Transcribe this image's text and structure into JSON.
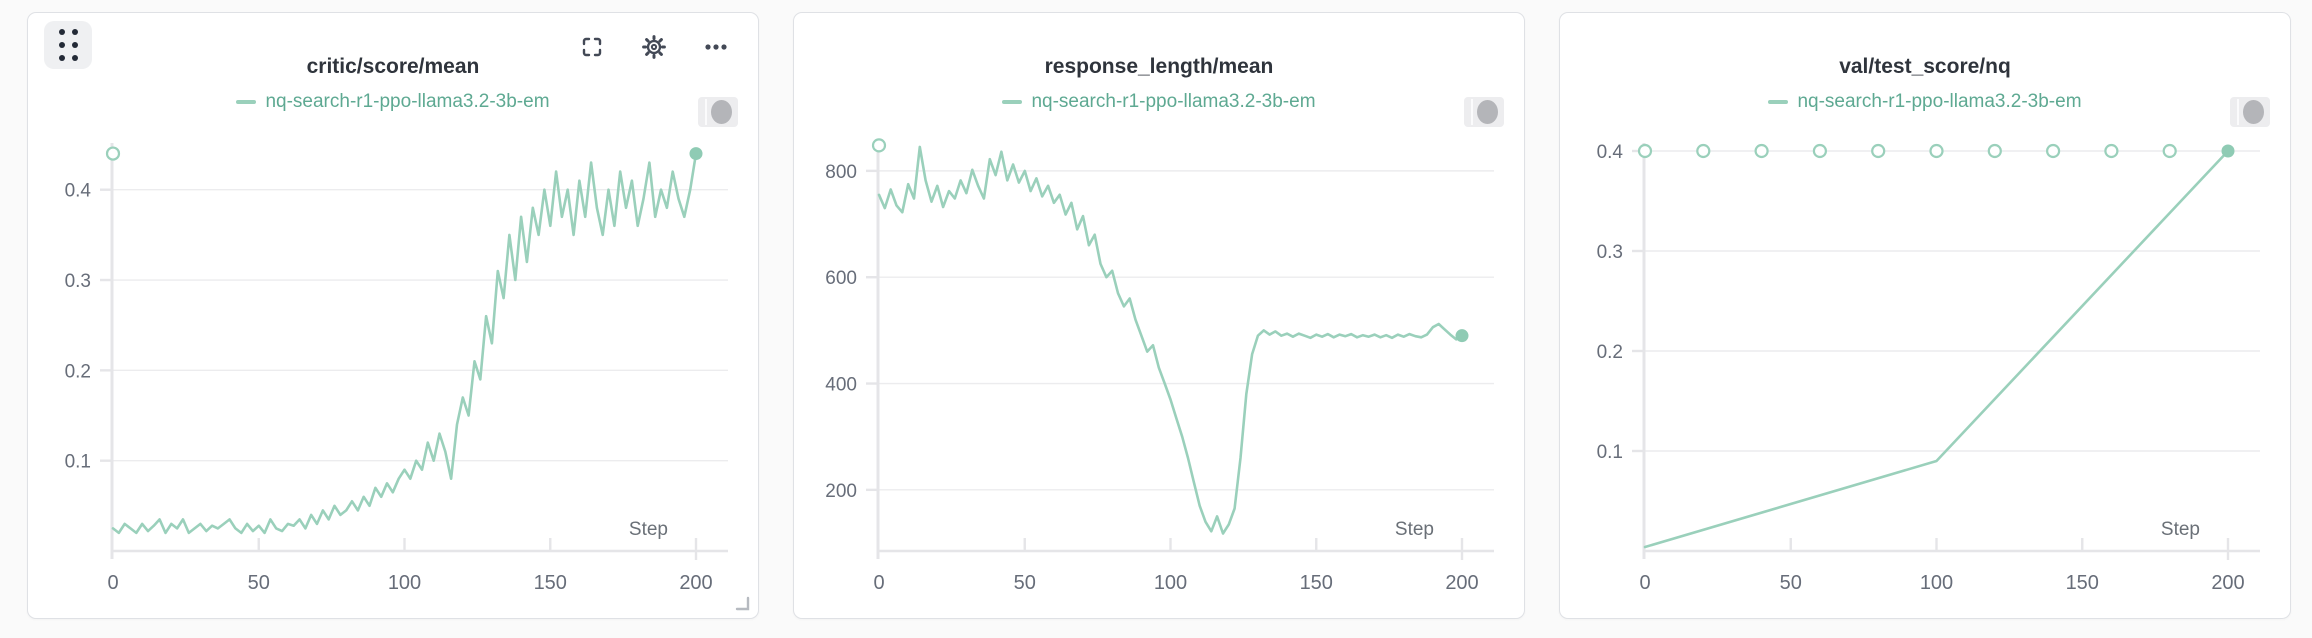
{
  "page": {
    "background": "#fafafa"
  },
  "run": {
    "name": "nq-search-r1-ppo-llama3.2-3b-em"
  },
  "colors": {
    "accent": "#9ad0bb",
    "legend_text": "#5ea992",
    "marker_fill": "#8fcbb4",
    "grid": "#ececee",
    "axis": "#e5e5e8",
    "tick_text": "#676d79",
    "title_text": "#2f343c",
    "step_text": "#6a7077"
  },
  "toolbar": {
    "icons": [
      "fullscreen",
      "settings",
      "more-options"
    ]
  },
  "chart_data": [
    {
      "type": "line",
      "title": "critic/score/mean",
      "legend": "nq-search-r1-ppo-llama3.2-3b-em",
      "xlabel": "Step",
      "xlim": [
        0,
        200
      ],
      "xticks": [
        0,
        50,
        100,
        150,
        200
      ],
      "ylim": [
        0,
        0.465
      ],
      "yticks": [
        0.1,
        0.2,
        0.3,
        0.4
      ],
      "ytick_labels": [
        "0.1",
        "0.2",
        "0.3",
        "0.4"
      ],
      "grid": true,
      "legend_position": "top-center",
      "points": [
        [
          0,
          0.025
        ],
        [
          2,
          0.02
        ],
        [
          4,
          0.03
        ],
        [
          6,
          0.025
        ],
        [
          8,
          0.02
        ],
        [
          10,
          0.03
        ],
        [
          12,
          0.022
        ],
        [
          14,
          0.028
        ],
        [
          16,
          0.035
        ],
        [
          18,
          0.02
        ],
        [
          20,
          0.03
        ],
        [
          22,
          0.025
        ],
        [
          24,
          0.035
        ],
        [
          26,
          0.02
        ],
        [
          28,
          0.025
        ],
        [
          30,
          0.03
        ],
        [
          32,
          0.022
        ],
        [
          34,
          0.028
        ],
        [
          36,
          0.025
        ],
        [
          38,
          0.03
        ],
        [
          40,
          0.035
        ],
        [
          42,
          0.025
        ],
        [
          44,
          0.02
        ],
        [
          46,
          0.03
        ],
        [
          48,
          0.022
        ],
        [
          50,
          0.028
        ],
        [
          52,
          0.02
        ],
        [
          54,
          0.035
        ],
        [
          56,
          0.025
        ],
        [
          58,
          0.022
        ],
        [
          60,
          0.03
        ],
        [
          62,
          0.028
        ],
        [
          64,
          0.035
        ],
        [
          66,
          0.025
        ],
        [
          68,
          0.04
        ],
        [
          70,
          0.03
        ],
        [
          72,
          0.045
        ],
        [
          74,
          0.035
        ],
        [
          76,
          0.05
        ],
        [
          78,
          0.04
        ],
        [
          80,
          0.045
        ],
        [
          82,
          0.055
        ],
        [
          84,
          0.045
        ],
        [
          86,
          0.06
        ],
        [
          88,
          0.05
        ],
        [
          90,
          0.07
        ],
        [
          92,
          0.06
        ],
        [
          94,
          0.075
        ],
        [
          96,
          0.065
        ],
        [
          98,
          0.08
        ],
        [
          100,
          0.09
        ],
        [
          102,
          0.08
        ],
        [
          104,
          0.1
        ],
        [
          106,
          0.09
        ],
        [
          108,
          0.12
        ],
        [
          110,
          0.1
        ],
        [
          112,
          0.13
        ],
        [
          114,
          0.11
        ],
        [
          116,
          0.08
        ],
        [
          118,
          0.14
        ],
        [
          120,
          0.17
        ],
        [
          122,
          0.15
        ],
        [
          124,
          0.21
        ],
        [
          126,
          0.19
        ],
        [
          128,
          0.26
        ],
        [
          130,
          0.23
        ],
        [
          132,
          0.31
        ],
        [
          134,
          0.28
        ],
        [
          136,
          0.35
        ],
        [
          138,
          0.3
        ],
        [
          140,
          0.37
        ],
        [
          142,
          0.32
        ],
        [
          144,
          0.38
        ],
        [
          146,
          0.35
        ],
        [
          148,
          0.4
        ],
        [
          150,
          0.36
        ],
        [
          152,
          0.42
        ],
        [
          154,
          0.37
        ],
        [
          156,
          0.4
        ],
        [
          158,
          0.35
        ],
        [
          160,
          0.41
        ],
        [
          162,
          0.37
        ],
        [
          164,
          0.43
        ],
        [
          166,
          0.38
        ],
        [
          168,
          0.35
        ],
        [
          170,
          0.4
        ],
        [
          172,
          0.36
        ],
        [
          174,
          0.42
        ],
        [
          176,
          0.38
        ],
        [
          178,
          0.41
        ],
        [
          180,
          0.36
        ],
        [
          182,
          0.39
        ],
        [
          184,
          0.43
        ],
        [
          186,
          0.37
        ],
        [
          188,
          0.4
        ],
        [
          190,
          0.38
        ],
        [
          192,
          0.42
        ],
        [
          194,
          0.39
        ],
        [
          196,
          0.37
        ],
        [
          198,
          0.4
        ],
        [
          200,
          0.44
        ]
      ],
      "hollow_markers": [
        [
          0,
          0.44
        ]
      ],
      "end_marker": [
        200,
        0.44
      ]
    },
    {
      "type": "line",
      "title": "response_length/mean",
      "legend": "nq-search-r1-ppo-llama3.2-3b-em",
      "xlabel": "Step",
      "xlim": [
        0,
        200
      ],
      "xticks": [
        0,
        50,
        100,
        150,
        200
      ],
      "ylim": [
        85,
        875
      ],
      "yticks": [
        200,
        400,
        600,
        800
      ],
      "ytick_labels": [
        "200",
        "400",
        "600",
        "800"
      ],
      "grid": true,
      "legend_position": "top-center",
      "points": [
        [
          0,
          755
        ],
        [
          2,
          730
        ],
        [
          4,
          765
        ],
        [
          6,
          735
        ],
        [
          8,
          722
        ],
        [
          10,
          775
        ],
        [
          12,
          748
        ],
        [
          14,
          845
        ],
        [
          16,
          782
        ],
        [
          18,
          742
        ],
        [
          20,
          772
        ],
        [
          22,
          732
        ],
        [
          24,
          762
        ],
        [
          26,
          748
        ],
        [
          28,
          782
        ],
        [
          30,
          758
        ],
        [
          32,
          802
        ],
        [
          34,
          772
        ],
        [
          36,
          748
        ],
        [
          38,
          822
        ],
        [
          40,
          792
        ],
        [
          42,
          836
        ],
        [
          44,
          782
        ],
        [
          46,
          812
        ],
        [
          48,
          778
        ],
        [
          50,
          800
        ],
        [
          52,
          762
        ],
        [
          54,
          786
        ],
        [
          56,
          752
        ],
        [
          58,
          772
        ],
        [
          60,
          740
        ],
        [
          62,
          755
        ],
        [
          64,
          718
        ],
        [
          66,
          740
        ],
        [
          68,
          690
        ],
        [
          70,
          715
        ],
        [
          72,
          660
        ],
        [
          74,
          680
        ],
        [
          76,
          625
        ],
        [
          78,
          600
        ],
        [
          80,
          612
        ],
        [
          82,
          570
        ],
        [
          84,
          545
        ],
        [
          86,
          560
        ],
        [
          88,
          520
        ],
        [
          90,
          490
        ],
        [
          92,
          460
        ],
        [
          94,
          472
        ],
        [
          96,
          430
        ],
        [
          98,
          400
        ],
        [
          100,
          370
        ],
        [
          102,
          335
        ],
        [
          104,
          300
        ],
        [
          106,
          260
        ],
        [
          108,
          215
        ],
        [
          110,
          170
        ],
        [
          112,
          140
        ],
        [
          114,
          122
        ],
        [
          116,
          150
        ],
        [
          118,
          118
        ],
        [
          120,
          135
        ],
        [
          122,
          165
        ],
        [
          124,
          260
        ],
        [
          126,
          380
        ],
        [
          128,
          455
        ],
        [
          130,
          490
        ],
        [
          132,
          500
        ],
        [
          134,
          492
        ],
        [
          136,
          498
        ],
        [
          138,
          490
        ],
        [
          140,
          494
        ],
        [
          142,
          488
        ],
        [
          144,
          494
        ],
        [
          146,
          490
        ],
        [
          148,
          486
        ],
        [
          150,
          492
        ],
        [
          152,
          488
        ],
        [
          154,
          493
        ],
        [
          156,
          487
        ],
        [
          158,
          492
        ],
        [
          160,
          489
        ],
        [
          162,
          493
        ],
        [
          164,
          487
        ],
        [
          166,
          491
        ],
        [
          168,
          488
        ],
        [
          170,
          492
        ],
        [
          172,
          487
        ],
        [
          174,
          491
        ],
        [
          176,
          486
        ],
        [
          178,
          492
        ],
        [
          180,
          488
        ],
        [
          182,
          493
        ],
        [
          184,
          489
        ],
        [
          186,
          487
        ],
        [
          188,
          492
        ],
        [
          190,
          506
        ],
        [
          192,
          512
        ],
        [
          194,
          502
        ],
        [
          196,
          492
        ],
        [
          198,
          483
        ],
        [
          200,
          490
        ]
      ],
      "hollow_markers": [
        [
          0,
          848
        ]
      ],
      "end_marker": [
        200,
        490
      ]
    },
    {
      "type": "line",
      "title": "val/test_score/nq",
      "legend": "nq-search-r1-ppo-llama3.2-3b-em",
      "xlabel": "Step",
      "xlim": [
        0,
        200
      ],
      "xticks": [
        0,
        50,
        100,
        150,
        200
      ],
      "ylim": [
        0,
        0.42
      ],
      "yticks": [
        0.1,
        0.2,
        0.3,
        0.4
      ],
      "ytick_labels": [
        "0.1",
        "0.2",
        "0.3",
        "0.4"
      ],
      "grid": true,
      "legend_position": "top-center",
      "points": [
        [
          0,
          0.004
        ],
        [
          100,
          0.09
        ],
        [
          200,
          0.4
        ]
      ],
      "hollow_markers": [
        [
          0,
          0.4
        ],
        [
          20,
          0.4
        ],
        [
          40,
          0.4
        ],
        [
          60,
          0.4
        ],
        [
          80,
          0.4
        ],
        [
          100,
          0.4
        ],
        [
          120,
          0.4
        ],
        [
          140,
          0.4
        ],
        [
          160,
          0.4
        ],
        [
          180,
          0.4
        ]
      ],
      "end_marker": [
        200,
        0.4
      ]
    }
  ]
}
